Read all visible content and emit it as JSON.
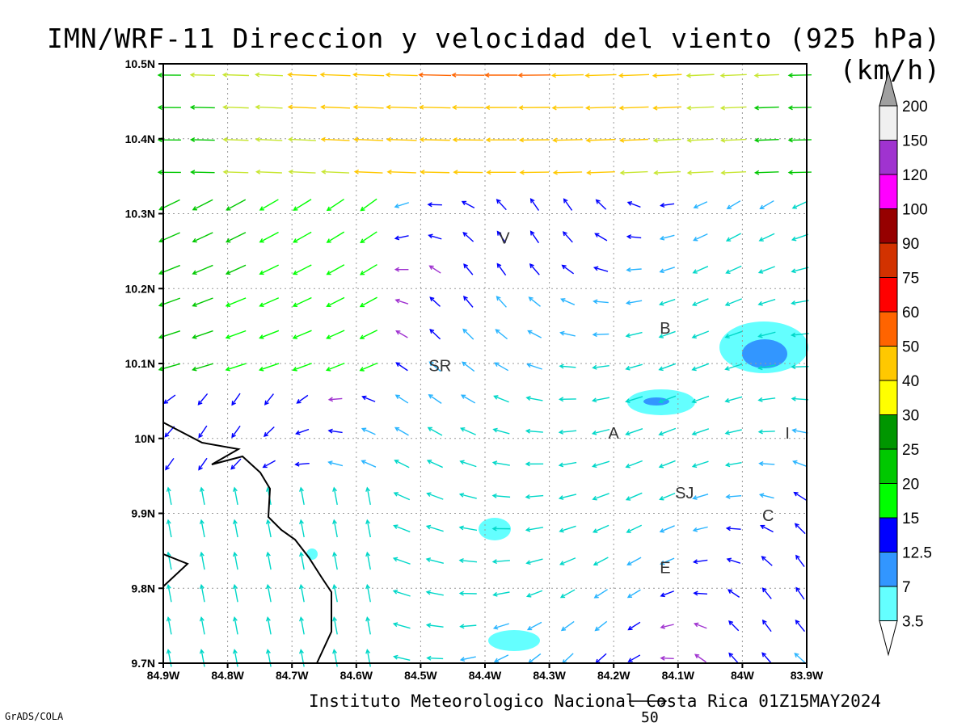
{
  "title": "IMN/WRF-11 Direccion y velocidad del viento (925 hPa)(km/h)",
  "credit": "Instituto Meteorologico Nacional Costa Rica 01Z15MAY2024",
  "software": "GrADS/COLA",
  "reference_vector": {
    "value": "50"
  },
  "map": {
    "lon_range": [
      -84.9,
      -83.9
    ],
    "lat_range": [
      9.7,
      10.5
    ],
    "grid": "dotted",
    "lat_ticks": [
      "10.5N",
      "10.4N",
      "10.3N",
      "10.2N",
      "10.1N",
      "10N",
      "9.9N",
      "9.8N",
      "9.7N"
    ],
    "lon_ticks": [
      "84.9W",
      "84.8W",
      "84.7W",
      "84.6W",
      "84.5W",
      "84.4W",
      "84.3W",
      "84.2W",
      "84.1W",
      "84W",
      "83.9W"
    ],
    "place_labels": [
      {
        "text": "V",
        "lon": -84.37,
        "lat": 10.26
      },
      {
        "text": "B",
        "lon": -84.12,
        "lat": 10.14
      },
      {
        "text": "SR",
        "lon": -84.47,
        "lat": 10.09
      },
      {
        "text": "A",
        "lon": -84.2,
        "lat": 10.0
      },
      {
        "text": "I",
        "lon": -83.93,
        "lat": 10.0
      },
      {
        "text": "SJ",
        "lon": -84.09,
        "lat": 9.92
      },
      {
        "text": "C",
        "lon": -83.96,
        "lat": 9.89
      },
      {
        "text": "E",
        "lon": -84.12,
        "lat": 9.82
      }
    ]
  },
  "colorbar": {
    "labels": [
      "200",
      "150",
      "120",
      "100",
      "90",
      "75",
      "60",
      "50",
      "40",
      "30",
      "25",
      "20",
      "15",
      "12.5",
      "7",
      "3.5"
    ],
    "colors": [
      "#f0f0f0",
      "#a033d0",
      "#ff00ff",
      "#960000",
      "#d23200",
      "#ff0000",
      "#ff6400",
      "#ffc800",
      "#ffff00",
      "#009600",
      "#00c800",
      "#00ff00",
      "#0000ff",
      "#3296ff",
      "#64ffff"
    ],
    "top_arrow_color": "#a0a0a0"
  }
}
